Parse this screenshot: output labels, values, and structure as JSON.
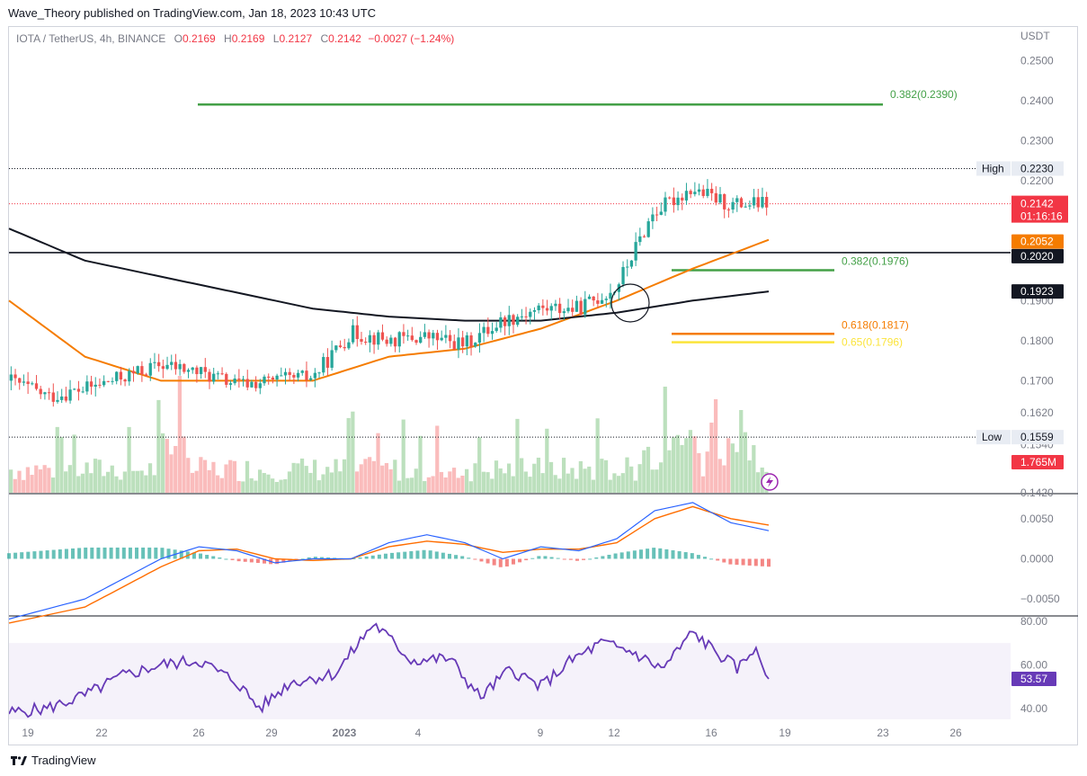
{
  "publisher_line": "Wave_Theory published on TradingView.com, Jan 18, 2023 10:43 UTC",
  "legend": {
    "symbol": "IOTA / TetherUS, 4h, BINANCE",
    "o_label": "O",
    "o": "0.2169",
    "h_label": "H",
    "h": "0.2169",
    "l_label": "L",
    "l": "0.2127",
    "c_label": "C",
    "c": "0.2142",
    "change": "−0.0027 (−1.24%)"
  },
  "footer": {
    "brand": "TradingView"
  },
  "colors": {
    "up": "#26a69a",
    "down": "#ef5350",
    "ema_orange": "#f57c00",
    "ma_black": "#131722",
    "fib_green": "#43a047",
    "fib_orange": "#f57c00",
    "fib_yellow": "#fbe43b",
    "rsi": "#673ab7",
    "macd": "#2962ff",
    "signal": "#ff6d00",
    "price_red": "#f23645"
  },
  "chart_data": [
    {
      "type": "candlestick",
      "pane": "price",
      "unit": "USDT",
      "ylim": [
        0.142,
        0.255
      ],
      "y_ticks": [
        "0.2500",
        "0.2400",
        "0.2300",
        "0.2200",
        "0.2020",
        "0.1923",
        "0.1900",
        "0.1800",
        "0.1700",
        "0.1620",
        "0.1540",
        "0.1420"
      ],
      "x_ticks": [
        "19",
        "22",
        "26",
        "29",
        "2023",
        "4",
        "9",
        "12",
        "16",
        "19",
        "23",
        "26"
      ],
      "series": [
        {
          "name": "",
          "kind": "price",
          "desc": "IOTA/USDT 4h candles from Dec 18 to Jan 18",
          "close_path": [
            [
              0,
              0.17
            ],
            [
              0.05,
              0.166
            ],
            [
              0.1,
              0.168
            ],
            [
              0.15,
              0.171
            ],
            [
              0.2,
              0.174
            ],
            [
              0.25,
              0.172
            ],
            [
              0.3,
              0.169
            ],
            [
              0.35,
              0.17
            ],
            [
              0.4,
              0.171
            ],
            [
              0.45,
              0.182
            ],
            [
              0.5,
              0.18
            ],
            [
              0.55,
              0.181
            ],
            [
              0.6,
              0.179
            ],
            [
              0.65,
              0.185
            ],
            [
              0.7,
              0.188
            ],
            [
              0.75,
              0.188
            ],
            [
              0.8,
              0.193
            ],
            [
              0.85,
              0.212
            ],
            [
              0.9,
              0.218
            ],
            [
              0.95,
              0.214
            ],
            [
              1.0,
              0.2142
            ]
          ]
        },
        {
          "name": "",
          "kind": "ema_orange",
          "path": [
            [
              0,
              0.19
            ],
            [
              0.1,
              0.176
            ],
            [
              0.2,
              0.17
            ],
            [
              0.3,
              0.17
            ],
            [
              0.4,
              0.17
            ],
            [
              0.5,
              0.176
            ],
            [
              0.6,
              0.178
            ],
            [
              0.7,
              0.183
            ],
            [
              0.8,
              0.19
            ],
            [
              0.9,
              0.198
            ],
            [
              1.0,
              0.2052
            ]
          ]
        },
        {
          "name": "",
          "kind": "ma_black",
          "path": [
            [
              0,
              0.208
            ],
            [
              0.1,
              0.2
            ],
            [
              0.2,
              0.196
            ],
            [
              0.3,
              0.192
            ],
            [
              0.4,
              0.188
            ],
            [
              0.5,
              0.186
            ],
            [
              0.6,
              0.185
            ],
            [
              0.7,
              0.185
            ],
            [
              0.8,
              0.187
            ],
            [
              0.9,
              0.19
            ],
            [
              1.0,
              0.1923
            ]
          ]
        }
      ],
      "levels": [
        {
          "label": "0.382(0.2390)",
          "value": 0.239,
          "color": "#43a047"
        },
        {
          "label": "0.382(0.1976)",
          "value": 0.1976,
          "color": "#43a047"
        },
        {
          "label": "0.618(0.1817)",
          "value": 0.1817,
          "color": "#f57c00"
        },
        {
          "label": "0.65(0.1796)",
          "value": 0.1796,
          "color": "#fbe43b"
        },
        {
          "label": "",
          "value": 0.202,
          "color": "#131722"
        }
      ],
      "high": {
        "label": "High",
        "value": "0.2230"
      },
      "low": {
        "label": "Low",
        "value": "0.1559"
      },
      "price_tags": [
        {
          "value": "0.2142",
          "sub": "01:16:16",
          "color": "#f23645"
        },
        {
          "value": "0.2052",
          "color": "#f57c00"
        },
        {
          "value": "0.2020",
          "color": "#131722"
        },
        {
          "value": "0.1923",
          "color": "#131722"
        }
      ],
      "volume_tag": {
        "value": "1.765M",
        "color": "#f23645"
      }
    },
    {
      "type": "line",
      "pane": "macd",
      "ylim": [
        -0.007,
        0.008
      ],
      "y_ticks": [
        "0.0050",
        "0.0000",
        "−0.0050"
      ],
      "series": [
        {
          "name": "",
          "kind": "macd",
          "path": [
            [
              0,
              -0.0075
            ],
            [
              0.1,
              -0.005
            ],
            [
              0.2,
              0.0
            ],
            [
              0.25,
              0.0015
            ],
            [
              0.3,
              0.001
            ],
            [
              0.35,
              -0.0005
            ],
            [
              0.4,
              0.0
            ],
            [
              0.45,
              0.0
            ],
            [
              0.5,
              0.002
            ],
            [
              0.55,
              0.003
            ],
            [
              0.6,
              0.002
            ],
            [
              0.65,
              0.0
            ],
            [
              0.7,
              0.0015
            ],
            [
              0.75,
              0.001
            ],
            [
              0.8,
              0.0025
            ],
            [
              0.85,
              0.006
            ],
            [
              0.9,
              0.007
            ],
            [
              0.95,
              0.0045
            ],
            [
              1.0,
              0.0035
            ]
          ]
        },
        {
          "name": "",
          "kind": "signal",
          "path": [
            [
              0,
              -0.008
            ],
            [
              0.1,
              -0.006
            ],
            [
              0.2,
              -0.001
            ],
            [
              0.25,
              0.001
            ],
            [
              0.3,
              0.0012
            ],
            [
              0.35,
              0.0
            ],
            [
              0.4,
              -0.0002
            ],
            [
              0.45,
              0.0
            ],
            [
              0.5,
              0.0015
            ],
            [
              0.55,
              0.0022
            ],
            [
              0.6,
              0.0018
            ],
            [
              0.65,
              0.0008
            ],
            [
              0.7,
              0.0012
            ],
            [
              0.75,
              0.0012
            ],
            [
              0.8,
              0.002
            ],
            [
              0.85,
              0.005
            ],
            [
              0.9,
              0.0065
            ],
            [
              0.95,
              0.005
            ],
            [
              1.0,
              0.0042
            ]
          ]
        }
      ]
    },
    {
      "type": "line",
      "pane": "rsi",
      "ylim": [
        35,
        82
      ],
      "y_ticks": [
        "80.00",
        "60.00",
        "40.00"
      ],
      "band": [
        30,
        70
      ],
      "current": "53.57",
      "series": [
        {
          "name": "",
          "kind": "rsi",
          "path": [
            [
              0,
              38
            ],
            [
              0.05,
              40
            ],
            [
              0.1,
              46
            ],
            [
              0.15,
              55
            ],
            [
              0.2,
              60
            ],
            [
              0.25,
              62
            ],
            [
              0.3,
              52
            ],
            [
              0.33,
              40
            ],
            [
              0.37,
              52
            ],
            [
              0.43,
              56
            ],
            [
              0.48,
              79
            ],
            [
              0.53,
              62
            ],
            [
              0.58,
              63
            ],
            [
              0.62,
              45
            ],
            [
              0.66,
              58
            ],
            [
              0.7,
              50
            ],
            [
              0.74,
              62
            ],
            [
              0.78,
              70
            ],
            [
              0.82,
              66
            ],
            [
              0.86,
              58
            ],
            [
              0.9,
              75
            ],
            [
              0.93,
              66
            ],
            [
              0.96,
              58
            ],
            [
              0.98,
              68
            ],
            [
              1.0,
              53.57
            ]
          ]
        }
      ]
    }
  ]
}
